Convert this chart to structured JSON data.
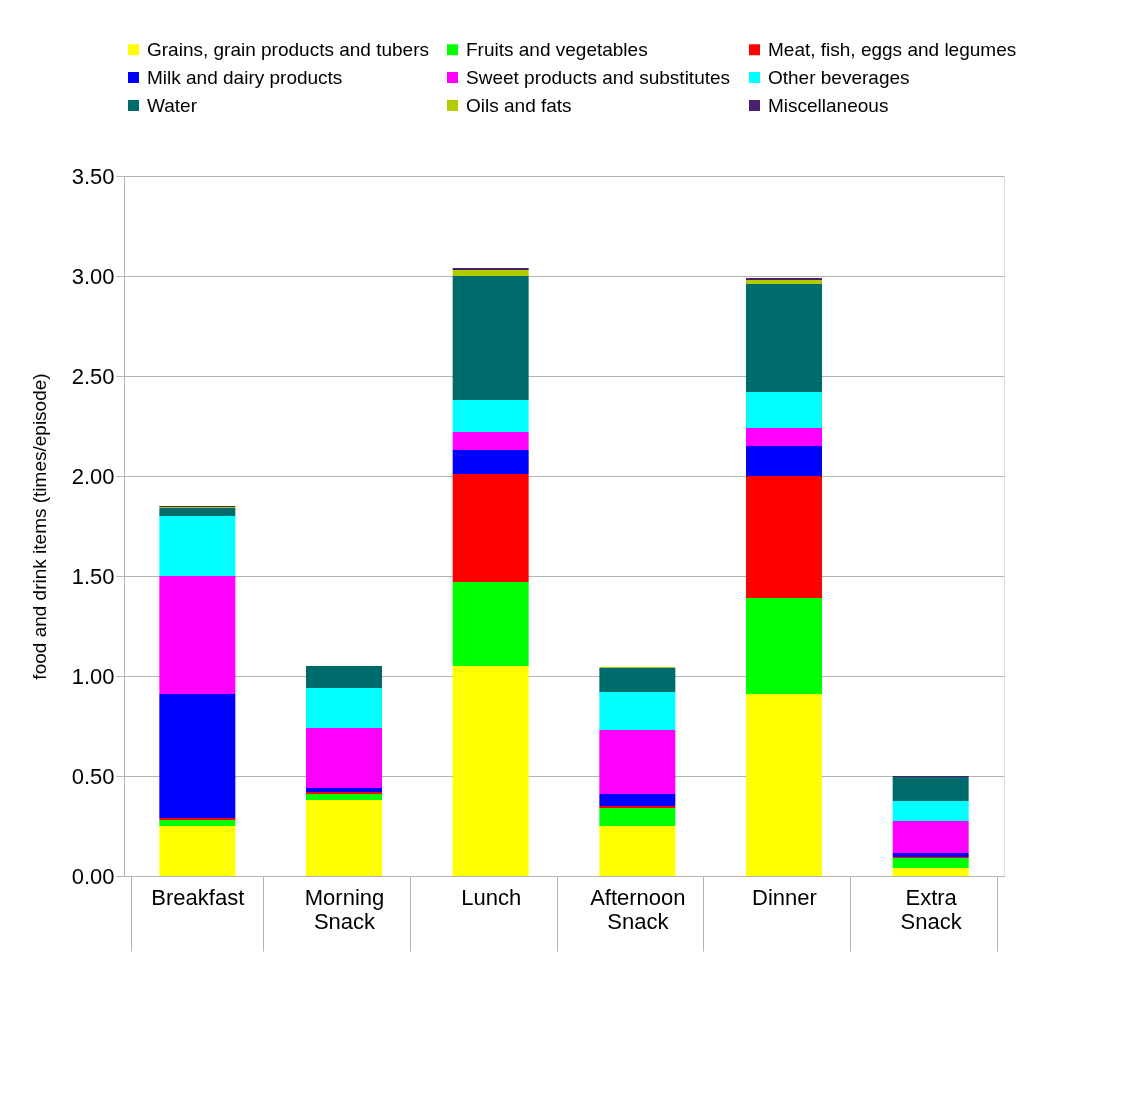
{
  "chart_data": {
    "type": "bar",
    "stacked": true,
    "ylabel": "food and drink items (times/episode)",
    "categories": [
      "Breakfast",
      "Morning Snack",
      "Lunch",
      "Afternoon Snack",
      "Dinner",
      "Extra Snack"
    ],
    "series": [
      {
        "name": "Grains, grain products and tubers",
        "color": "#ffff00",
        "values": [
          0.25,
          0.38,
          1.05,
          0.25,
          0.91,
          0.04
        ]
      },
      {
        "name": "Fruits and vegetables",
        "color": "#00ff00",
        "values": [
          0.03,
          0.03,
          0.42,
          0.09,
          0.48,
          0.05
        ]
      },
      {
        "name": "Meat, fish, eggs and legumes",
        "color": "#ff0000",
        "values": [
          0.01,
          0.01,
          0.54,
          0.01,
          0.61,
          0.005
        ]
      },
      {
        "name": "Milk and dairy products",
        "color": "#0000ff",
        "values": [
          0.62,
          0.02,
          0.12,
          0.06,
          0.15,
          0.02
        ]
      },
      {
        "name": "Sweet products and substitutes",
        "color": "#ff00ff",
        "values": [
          0.59,
          0.3,
          0.09,
          0.32,
          0.09,
          0.16
        ]
      },
      {
        "name": "Other beverages",
        "color": "#00ffff",
        "values": [
          0.3,
          0.2,
          0.16,
          0.19,
          0.18,
          0.1
        ]
      },
      {
        "name": "Water",
        "color": "#006b6b",
        "values": [
          0.04,
          0.11,
          0.62,
          0.12,
          0.54,
          0.12
        ]
      },
      {
        "name": "Oils and fats",
        "color": "#b3cc00",
        "values": [
          0.005,
          null,
          0.03,
          0.005,
          0.02,
          null
        ]
      },
      {
        "name": "Miscellaneous",
        "color": "#4b1f6f",
        "values": [
          0.005,
          null,
          0.01,
          null,
          0.01,
          0.005
        ]
      }
    ],
    "ylim": [
      0,
      3.5
    ],
    "yticks": [
      {
        "value": 0,
        "label": "0.00"
      },
      {
        "value": 0.5,
        "label": "0.50"
      },
      {
        "value": 1,
        "label": "1.00"
      },
      {
        "value": 1.5,
        "label": "1.50"
      },
      {
        "value": 2,
        "label": "2.00"
      },
      {
        "value": 2.5,
        "label": "2.50"
      },
      {
        "value": 3,
        "label": "3.00"
      },
      {
        "value": 3.5,
        "label": "3.50"
      }
    ],
    "grid": "y",
    "legend": "top"
  }
}
